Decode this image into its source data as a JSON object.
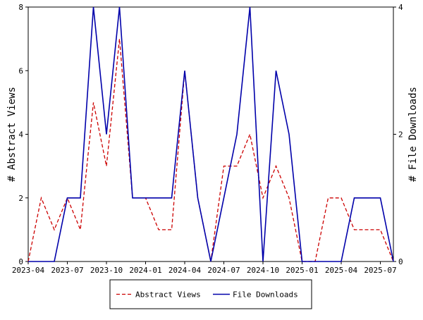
{
  "chart_data": {
    "type": "line",
    "title": "",
    "x": [
      "2023-04",
      "2023-05",
      "2023-06",
      "2023-07",
      "2023-08",
      "2023-09",
      "2023-10",
      "2023-11",
      "2023-12",
      "2024-01",
      "2024-02",
      "2024-03",
      "2024-04",
      "2024-05",
      "2024-06",
      "2024-07",
      "2024-08",
      "2024-09",
      "2024-10",
      "2024-11",
      "2024-12",
      "2025-01",
      "2025-02",
      "2025-03",
      "2025-04",
      "2025-05",
      "2025-06",
      "2025-07",
      "2025-08"
    ],
    "x_tick_labels": [
      "2023-04",
      "2023-07",
      "2023-10",
      "2024-01",
      "2024-04",
      "2024-07",
      "2024-10",
      "2025-01",
      "2025-04",
      "2025-07"
    ],
    "ylabel_left": "# Abstract Views",
    "ylabel_right": "# File Downloads",
    "ylim_left": [
      0,
      8
    ],
    "ylim_right": [
      0,
      4
    ],
    "y_ticks_left": [
      "0",
      "2",
      "4",
      "6",
      "8"
    ],
    "y_ticks_right": [
      "0",
      "2",
      "4"
    ],
    "grid": false,
    "legend_position": "bottom-center",
    "series": [
      {
        "name": "Abstract Views",
        "axis": "left",
        "style": "dashed",
        "color": "#cc0000",
        "values": [
          0,
          2,
          1,
          2,
          1,
          5,
          3,
          7,
          2,
          2,
          1,
          1,
          6,
          2,
          0,
          3,
          3,
          4,
          2,
          3,
          2,
          0,
          0,
          2,
          2,
          1,
          1,
          1,
          0
        ]
      },
      {
        "name": "File Downloads",
        "axis": "right",
        "style": "solid",
        "color": "#0000aa",
        "values": [
          0,
          0,
          0,
          1,
          1,
          4,
          2,
          4,
          1,
          1,
          1,
          1,
          3,
          1,
          0,
          1,
          2,
          4,
          0,
          3,
          2,
          0,
          0,
          0,
          0,
          1,
          1,
          1,
          0
        ]
      }
    ]
  }
}
